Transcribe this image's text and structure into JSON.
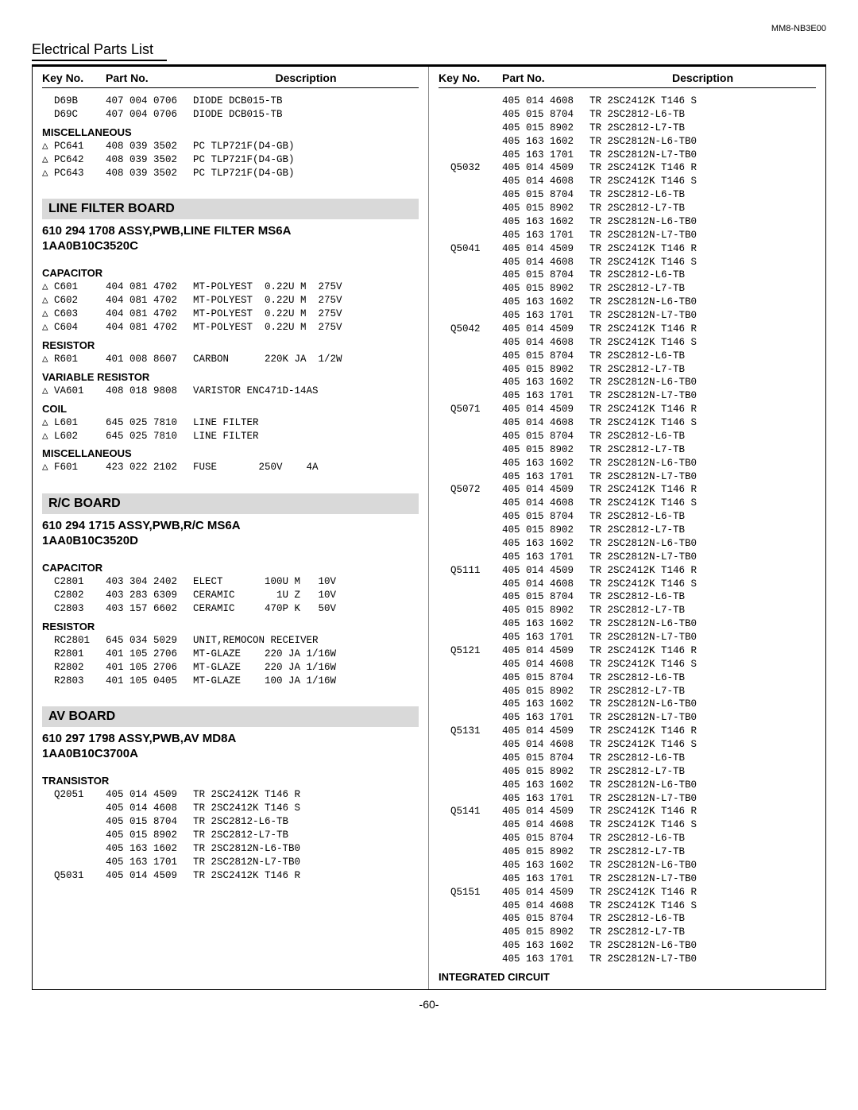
{
  "doc_code": "MM8-NB3E00",
  "page_title": "Electrical Parts List",
  "page_number": "-60-",
  "headers": {
    "key": "Key No.",
    "part": "Part No.",
    "desc": "Description"
  },
  "triangle": "△",
  "left": [
    {
      "type": "row",
      "key": "D69B",
      "part": "407 004 0706",
      "desc": "DIODE DCB015-TB"
    },
    {
      "type": "row",
      "key": "D69C",
      "part": "407 004 0706",
      "desc": "DIODE DCB015-TB"
    },
    {
      "type": "subhead",
      "text": "MISCELLANEOUS"
    },
    {
      "type": "row",
      "tri": true,
      "key": "PC641",
      "part": "408 039 3502",
      "desc": "PC TLP721F(D4-GB)"
    },
    {
      "type": "row",
      "tri": true,
      "key": "PC642",
      "part": "408 039 3502",
      "desc": "PC TLP721F(D4-GB)"
    },
    {
      "type": "row",
      "tri": true,
      "key": "PC643",
      "part": "408 039 3502",
      "desc": "PC TLP721F(D4-GB)"
    },
    {
      "type": "gap"
    },
    {
      "type": "banner",
      "text": "LINE FILTER BOARD"
    },
    {
      "type": "assy",
      "text": "610 294 1708 ASSY,PWB,LINE FILTER MS6A"
    },
    {
      "type": "assy",
      "text": "1AA0B10C3520C"
    },
    {
      "type": "gap"
    },
    {
      "type": "subhead",
      "text": "CAPACITOR"
    },
    {
      "type": "row",
      "tri": true,
      "key": "C601",
      "part": "404 081 4702",
      "desc": "MT-POLYEST  0.22U M  275V"
    },
    {
      "type": "row",
      "tri": true,
      "key": "C602",
      "part": "404 081 4702",
      "desc": "MT-POLYEST  0.22U M  275V"
    },
    {
      "type": "row",
      "tri": true,
      "key": "C603",
      "part": "404 081 4702",
      "desc": "MT-POLYEST  0.22U M  275V"
    },
    {
      "type": "row",
      "tri": true,
      "key": "C604",
      "part": "404 081 4702",
      "desc": "MT-POLYEST  0.22U M  275V"
    },
    {
      "type": "subhead",
      "text": "RESISTOR"
    },
    {
      "type": "row",
      "tri": true,
      "key": "R601",
      "part": "401 008 8607",
      "desc": "CARBON      220K JA  1/2W"
    },
    {
      "type": "subhead",
      "text": "VARIABLE RESISTOR"
    },
    {
      "type": "row",
      "tri": true,
      "key": "VA601",
      "part": "408 018 9808",
      "desc": "VARISTOR ENC471D-14AS"
    },
    {
      "type": "subhead",
      "text": "COIL"
    },
    {
      "type": "row",
      "tri": true,
      "key": "L601",
      "part": "645 025 7810",
      "desc": "LINE FILTER"
    },
    {
      "type": "row",
      "tri": true,
      "key": "L602",
      "part": "645 025 7810",
      "desc": "LINE FILTER"
    },
    {
      "type": "subhead",
      "text": "MISCELLANEOUS"
    },
    {
      "type": "row",
      "tri": true,
      "key": "F601",
      "part": "423 022 2102",
      "desc": "FUSE       250V    4A"
    },
    {
      "type": "gap"
    },
    {
      "type": "banner",
      "text": "R/C BOARD"
    },
    {
      "type": "assy",
      "text": "610 294 1715 ASSY,PWB,R/C MS6A"
    },
    {
      "type": "assy",
      "text": "1AA0B10C3520D"
    },
    {
      "type": "gap"
    },
    {
      "type": "subhead",
      "text": "CAPACITOR"
    },
    {
      "type": "row",
      "key": "C2801",
      "part": "403 304 2402",
      "desc": "ELECT       100U M   10V"
    },
    {
      "type": "row",
      "key": "C2802",
      "part": "403 283 6309",
      "desc": "CERAMIC       1U Z   10V"
    },
    {
      "type": "row",
      "key": "C2803",
      "part": "403 157 6602",
      "desc": "CERAMIC     470P K   50V"
    },
    {
      "type": "subhead",
      "text": "RESISTOR"
    },
    {
      "type": "row",
      "key": "RC2801",
      "part": "645 034 5029",
      "desc": "UNIT,REMOCON RECEIVER"
    },
    {
      "type": "row",
      "key": "R2801",
      "part": "401 105 2706",
      "desc": "MT-GLAZE    220 JA 1/16W"
    },
    {
      "type": "row",
      "key": "R2802",
      "part": "401 105 2706",
      "desc": "MT-GLAZE    220 JA 1/16W"
    },
    {
      "type": "row",
      "key": "R2803",
      "part": "401 105 0405",
      "desc": "MT-GLAZE    100 JA 1/16W"
    },
    {
      "type": "gap"
    },
    {
      "type": "banner",
      "text": "AV BOARD"
    },
    {
      "type": "assy",
      "text": "610 297 1798 ASSY,PWB,AV MD8A"
    },
    {
      "type": "assy",
      "text": "1AA0B10C3700A"
    },
    {
      "type": "gap"
    },
    {
      "type": "subhead",
      "text": "TRANSISTOR"
    },
    {
      "type": "row",
      "key": "Q2051",
      "part": "405 014 4509",
      "desc": "TR 2SC2412K T146 R"
    },
    {
      "type": "row",
      "key": "",
      "part": "405 014 4608",
      "desc": "TR 2SC2412K T146 S"
    },
    {
      "type": "row",
      "key": "",
      "part": "405 015 8704",
      "desc": "TR 2SC2812-L6-TB"
    },
    {
      "type": "row",
      "key": "",
      "part": "405 015 8902",
      "desc": "TR 2SC2812-L7-TB"
    },
    {
      "type": "row",
      "key": "",
      "part": "405 163 1602",
      "desc": "TR 2SC2812N-L6-TB0"
    },
    {
      "type": "row",
      "key": "",
      "part": "405 163 1701",
      "desc": "TR 2SC2812N-L7-TB0"
    },
    {
      "type": "row",
      "key": "Q5031",
      "part": "405 014 4509",
      "desc": "TR 2SC2412K T146 R"
    }
  ],
  "right": [
    {
      "type": "row",
      "key": "",
      "part": "405 014 4608",
      "desc": "TR 2SC2412K T146 S"
    },
    {
      "type": "row",
      "key": "",
      "part": "405 015 8704",
      "desc": "TR 2SC2812-L6-TB"
    },
    {
      "type": "row",
      "key": "",
      "part": "405 015 8902",
      "desc": "TR 2SC2812-L7-TB"
    },
    {
      "type": "row",
      "key": "",
      "part": "405 163 1602",
      "desc": "TR 2SC2812N-L6-TB0"
    },
    {
      "type": "row",
      "key": "",
      "part": "405 163 1701",
      "desc": "TR 2SC2812N-L7-TB0"
    },
    {
      "type": "row",
      "key": "Q5032",
      "part": "405 014 4509",
      "desc": "TR 2SC2412K T146 R"
    },
    {
      "type": "row",
      "key": "",
      "part": "405 014 4608",
      "desc": "TR 2SC2412K T146 S"
    },
    {
      "type": "row",
      "key": "",
      "part": "405 015 8704",
      "desc": "TR 2SC2812-L6-TB"
    },
    {
      "type": "row",
      "key": "",
      "part": "405 015 8902",
      "desc": "TR 2SC2812-L7-TB"
    },
    {
      "type": "row",
      "key": "",
      "part": "405 163 1602",
      "desc": "TR 2SC2812N-L6-TB0"
    },
    {
      "type": "row",
      "key": "",
      "part": "405 163 1701",
      "desc": "TR 2SC2812N-L7-TB0"
    },
    {
      "type": "row",
      "key": "Q5041",
      "part": "405 014 4509",
      "desc": "TR 2SC2412K T146 R"
    },
    {
      "type": "row",
      "key": "",
      "part": "405 014 4608",
      "desc": "TR 2SC2412K T146 S"
    },
    {
      "type": "row",
      "key": "",
      "part": "405 015 8704",
      "desc": "TR 2SC2812-L6-TB"
    },
    {
      "type": "row",
      "key": "",
      "part": "405 015 8902",
      "desc": "TR 2SC2812-L7-TB"
    },
    {
      "type": "row",
      "key": "",
      "part": "405 163 1602",
      "desc": "TR 2SC2812N-L6-TB0"
    },
    {
      "type": "row",
      "key": "",
      "part": "405 163 1701",
      "desc": "TR 2SC2812N-L7-TB0"
    },
    {
      "type": "row",
      "key": "Q5042",
      "part": "405 014 4509",
      "desc": "TR 2SC2412K T146 R"
    },
    {
      "type": "row",
      "key": "",
      "part": "405 014 4608",
      "desc": "TR 2SC2412K T146 S"
    },
    {
      "type": "row",
      "key": "",
      "part": "405 015 8704",
      "desc": "TR 2SC2812-L6-TB"
    },
    {
      "type": "row",
      "key": "",
      "part": "405 015 8902",
      "desc": "TR 2SC2812-L7-TB"
    },
    {
      "type": "row",
      "key": "",
      "part": "405 163 1602",
      "desc": "TR 2SC2812N-L6-TB0"
    },
    {
      "type": "row",
      "key": "",
      "part": "405 163 1701",
      "desc": "TR 2SC2812N-L7-TB0"
    },
    {
      "type": "row",
      "key": "Q5071",
      "part": "405 014 4509",
      "desc": "TR 2SC2412K T146 R"
    },
    {
      "type": "row",
      "key": "",
      "part": "405 014 4608",
      "desc": "TR 2SC2412K T146 S"
    },
    {
      "type": "row",
      "key": "",
      "part": "405 015 8704",
      "desc": "TR 2SC2812-L6-TB"
    },
    {
      "type": "row",
      "key": "",
      "part": "405 015 8902",
      "desc": "TR 2SC2812-L7-TB"
    },
    {
      "type": "row",
      "key": "",
      "part": "405 163 1602",
      "desc": "TR 2SC2812N-L6-TB0"
    },
    {
      "type": "row",
      "key": "",
      "part": "405 163 1701",
      "desc": "TR 2SC2812N-L7-TB0"
    },
    {
      "type": "row",
      "key": "Q5072",
      "part": "405 014 4509",
      "desc": "TR 2SC2412K T146 R"
    },
    {
      "type": "row",
      "key": "",
      "part": "405 014 4608",
      "desc": "TR 2SC2412K T146 S"
    },
    {
      "type": "row",
      "key": "",
      "part": "405 015 8704",
      "desc": "TR 2SC2812-L6-TB"
    },
    {
      "type": "row",
      "key": "",
      "part": "405 015 8902",
      "desc": "TR 2SC2812-L7-TB"
    },
    {
      "type": "row",
      "key": "",
      "part": "405 163 1602",
      "desc": "TR 2SC2812N-L6-TB0"
    },
    {
      "type": "row",
      "key": "",
      "part": "405 163 1701",
      "desc": "TR 2SC2812N-L7-TB0"
    },
    {
      "type": "row",
      "key": "Q5111",
      "part": "405 014 4509",
      "desc": "TR 2SC2412K T146 R"
    },
    {
      "type": "row",
      "key": "",
      "part": "405 014 4608",
      "desc": "TR 2SC2412K T146 S"
    },
    {
      "type": "row",
      "key": "",
      "part": "405 015 8704",
      "desc": "TR 2SC2812-L6-TB"
    },
    {
      "type": "row",
      "key": "",
      "part": "405 015 8902",
      "desc": "TR 2SC2812-L7-TB"
    },
    {
      "type": "row",
      "key": "",
      "part": "405 163 1602",
      "desc": "TR 2SC2812N-L6-TB0"
    },
    {
      "type": "row",
      "key": "",
      "part": "405 163 1701",
      "desc": "TR 2SC2812N-L7-TB0"
    },
    {
      "type": "row",
      "key": "Q5121",
      "part": "405 014 4509",
      "desc": "TR 2SC2412K T146 R"
    },
    {
      "type": "row",
      "key": "",
      "part": "405 014 4608",
      "desc": "TR 2SC2412K T146 S"
    },
    {
      "type": "row",
      "key": "",
      "part": "405 015 8704",
      "desc": "TR 2SC2812-L6-TB"
    },
    {
      "type": "row",
      "key": "",
      "part": "405 015 8902",
      "desc": "TR 2SC2812-L7-TB"
    },
    {
      "type": "row",
      "key": "",
      "part": "405 163 1602",
      "desc": "TR 2SC2812N-L6-TB0"
    },
    {
      "type": "row",
      "key": "",
      "part": "405 163 1701",
      "desc": "TR 2SC2812N-L7-TB0"
    },
    {
      "type": "row",
      "key": "Q5131",
      "part": "405 014 4509",
      "desc": "TR 2SC2412K T146 R"
    },
    {
      "type": "row",
      "key": "",
      "part": "405 014 4608",
      "desc": "TR 2SC2412K T146 S"
    },
    {
      "type": "row",
      "key": "",
      "part": "405 015 8704",
      "desc": "TR 2SC2812-L6-TB"
    },
    {
      "type": "row",
      "key": "",
      "part": "405 015 8902",
      "desc": "TR 2SC2812-L7-TB"
    },
    {
      "type": "row",
      "key": "",
      "part": "405 163 1602",
      "desc": "TR 2SC2812N-L6-TB0"
    },
    {
      "type": "row",
      "key": "",
      "part": "405 163 1701",
      "desc": "TR 2SC2812N-L7-TB0"
    },
    {
      "type": "row",
      "key": "Q5141",
      "part": "405 014 4509",
      "desc": "TR 2SC2412K T146 R"
    },
    {
      "type": "row",
      "key": "",
      "part": "405 014 4608",
      "desc": "TR 2SC2412K T146 S"
    },
    {
      "type": "row",
      "key": "",
      "part": "405 015 8704",
      "desc": "TR 2SC2812-L6-TB"
    },
    {
      "type": "row",
      "key": "",
      "part": "405 015 8902",
      "desc": "TR 2SC2812-L7-TB"
    },
    {
      "type": "row",
      "key": "",
      "part": "405 163 1602",
      "desc": "TR 2SC2812N-L6-TB0"
    },
    {
      "type": "row",
      "key": "",
      "part": "405 163 1701",
      "desc": "TR 2SC2812N-L7-TB0"
    },
    {
      "type": "row",
      "key": "Q5151",
      "part": "405 014 4509",
      "desc": "TR 2SC2412K T146 R"
    },
    {
      "type": "row",
      "key": "",
      "part": "405 014 4608",
      "desc": "TR 2SC2412K T146 S"
    },
    {
      "type": "row",
      "key": "",
      "part": "405 015 8704",
      "desc": "TR 2SC2812-L6-TB"
    },
    {
      "type": "row",
      "key": "",
      "part": "405 015 8902",
      "desc": "TR 2SC2812-L7-TB"
    },
    {
      "type": "row",
      "key": "",
      "part": "405 163 1602",
      "desc": "TR 2SC2812N-L6-TB0"
    },
    {
      "type": "row",
      "key": "",
      "part": "405 163 1701",
      "desc": "TR 2SC2812N-L7-TB0"
    },
    {
      "type": "subhead",
      "text": "INTEGRATED CIRCUIT"
    }
  ]
}
